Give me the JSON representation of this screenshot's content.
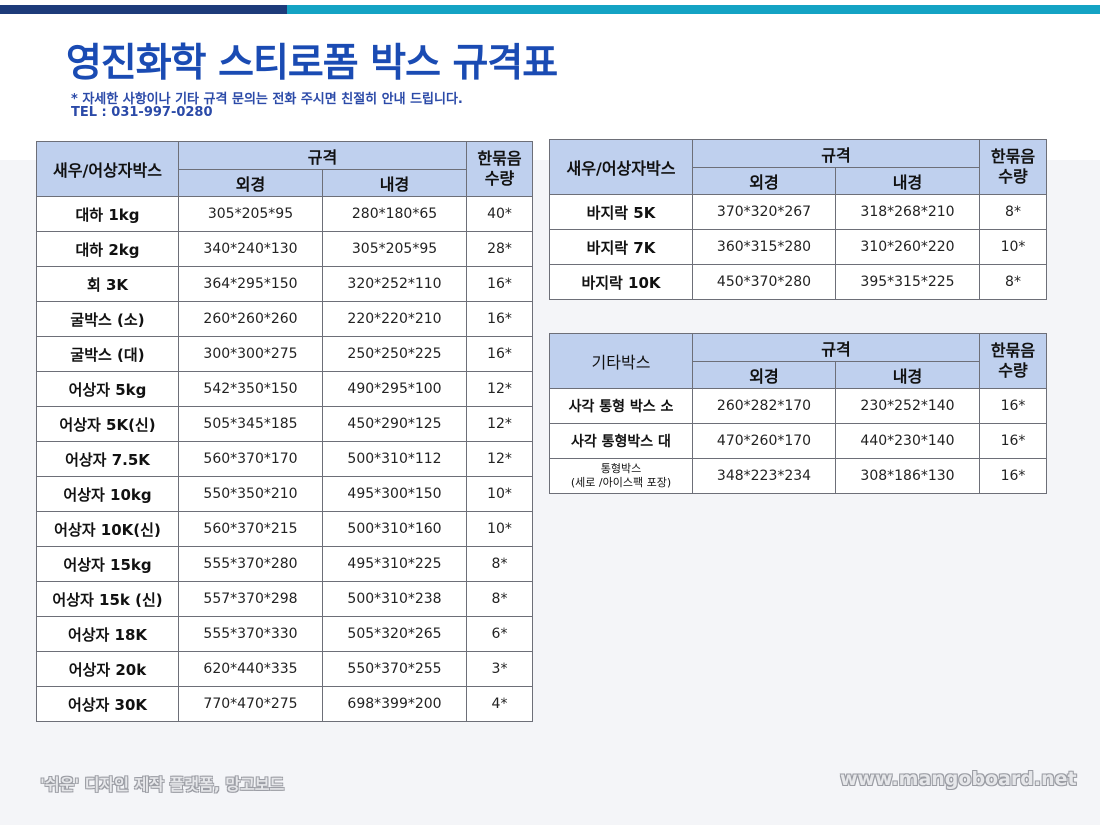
{
  "header": {
    "title": "영진화학 스티로폼 박스 규격표",
    "subtitle": "* 자세한 사항이나 기타 규격 문의는 전화 주시면 친절히 안내 드립니다.",
    "tel": "TEL : 031-997-0280"
  },
  "colors": {
    "title": "#1a4bb3",
    "header_fill": "#bfd0ee",
    "bar_dark": "#1d3b7a",
    "bar_light": "#14a3c4"
  },
  "table1": {
    "col_name": "새우/어상자박스",
    "col_spec": "규격",
    "col_outer": "외경",
    "col_inner": "내경",
    "col_qty_1": "한묶음",
    "col_qty_2": "수량",
    "rows": [
      {
        "name": "대하 1kg",
        "outer": "305*205*95",
        "inner": "280*180*65",
        "qty": "40*"
      },
      {
        "name": "대하 2kg",
        "outer": "340*240*130",
        "inner": "305*205*95",
        "qty": "28*"
      },
      {
        "name": "회 3K",
        "outer": "364*295*150",
        "inner": "320*252*110",
        "qty": "16*"
      },
      {
        "name": "굴박스 (소)",
        "outer": "260*260*260",
        "inner": "220*220*210",
        "qty": "16*"
      },
      {
        "name": "굴박스 (대)",
        "outer": "300*300*275",
        "inner": "250*250*225",
        "qty": "16*"
      },
      {
        "name": "어상자 5kg",
        "outer": "542*350*150",
        "inner": "490*295*100",
        "qty": "12*"
      },
      {
        "name": "어상자 5K(신)",
        "outer": "505*345*185",
        "inner": "450*290*125",
        "qty": "12*"
      },
      {
        "name": "어상자 7.5K",
        "outer": "560*370*170",
        "inner": "500*310*112",
        "qty": "12*"
      },
      {
        "name": "어상자 10kg",
        "outer": "550*350*210",
        "inner": "495*300*150",
        "qty": "10*"
      },
      {
        "name": "어상자 10K(신)",
        "outer": "560*370*215",
        "inner": "500*310*160",
        "qty": "10*"
      },
      {
        "name": "어상자 15kg",
        "outer": "555*370*280",
        "inner": "495*310*225",
        "qty": "8*"
      },
      {
        "name": "어상자 15k (신)",
        "outer": "557*370*298",
        "inner": "500*310*238",
        "qty": "8*"
      },
      {
        "name": "어상자 18K",
        "outer": "555*370*330",
        "inner": "505*320*265",
        "qty": "6*"
      },
      {
        "name": "어상자 20k",
        "outer": "620*440*335",
        "inner": "550*370*255",
        "qty": "3*"
      },
      {
        "name": "어상자 30K",
        "outer": "770*470*275",
        "inner": "698*399*200",
        "qty": "4*"
      }
    ]
  },
  "table2": {
    "col_name": "새우/어상자박스",
    "col_spec": "규격",
    "col_outer": "외경",
    "col_inner": "내경",
    "col_qty_1": "한묶음",
    "col_qty_2": "수량",
    "rows": [
      {
        "name": "바지락 5K",
        "outer": "370*320*267",
        "inner": "318*268*210",
        "qty": "8*"
      },
      {
        "name": "바지락 7K",
        "outer": "360*315*280",
        "inner": "310*260*220",
        "qty": "10*"
      },
      {
        "name": "바지락 10K",
        "outer": "450*370*280",
        "inner": "395*315*225",
        "qty": "8*"
      }
    ]
  },
  "table3": {
    "col_name": "기타박스",
    "col_spec": "규격",
    "col_outer": "외경",
    "col_inner": "내경",
    "col_qty_1": "한묶음",
    "col_qty_2": "수량",
    "rows": [
      {
        "name": "사각 통형 박스 소",
        "outer": "260*282*170",
        "inner": "230*252*140",
        "qty": "16*"
      },
      {
        "name": "사각 통형박스 대",
        "outer": "470*260*170",
        "inner": "440*230*140",
        "qty": "16*"
      },
      {
        "name_1": "통형박스",
        "name_2": "(세로 /아이스팩 포장)",
        "outer": "348*223*234",
        "inner": "308*186*130",
        "qty": "16*"
      }
    ]
  },
  "footer": {
    "left": "'쉬운' 디자인 제작 플랫폼, 망고보드",
    "right": "www.mangoboard.net"
  }
}
